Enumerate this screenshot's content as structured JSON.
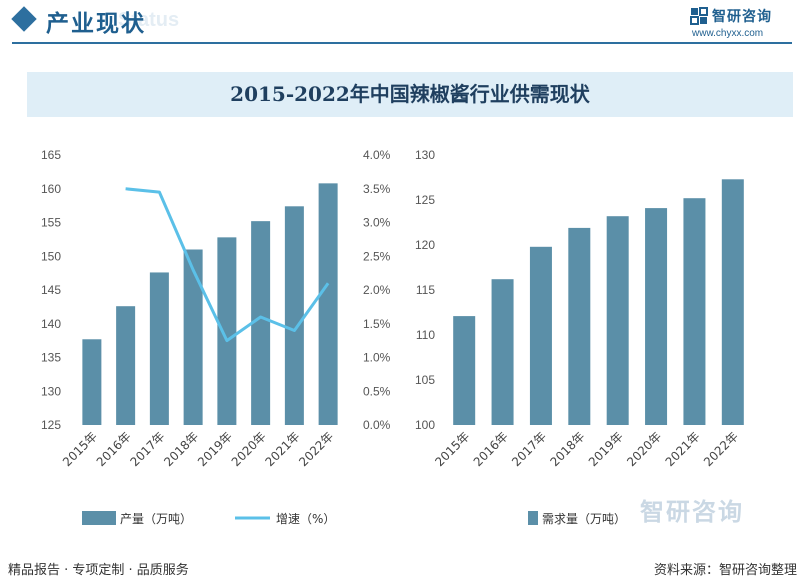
{
  "header": {
    "title": "产业现状",
    "watermark_en": "Status",
    "brand_name": "智研咨询",
    "brand_url": "www.chyxx.com"
  },
  "banner": {
    "title": "2015-2022年中国辣椒酱行业供需现状"
  },
  "footer": {
    "left": "精品报告 · 专项定制 · 品质服务",
    "source": "资料来源：智研咨询整理",
    "brand_watermark": "智研咨询"
  },
  "colors": {
    "bar": "#5b8fa8",
    "line": "#5bc0e8",
    "accent": "#2d6f9f"
  },
  "chart_data": [
    {
      "type": "bar+line",
      "categories": [
        "2015年",
        "2016年",
        "2017年",
        "2018年",
        "2019年",
        "2020年",
        "2021年",
        "2022年"
      ],
      "series": [
        {
          "name": "产量（万吨）",
          "type": "bar",
          "axis": "left",
          "values": [
            137.7,
            142.6,
            147.6,
            151.0,
            152.8,
            155.2,
            157.4,
            160.8
          ]
        },
        {
          "name": "增速（%）",
          "type": "line",
          "axis": "right",
          "values": [
            null,
            3.5,
            3.45,
            2.3,
            1.25,
            1.6,
            1.4,
            2.1
          ]
        }
      ],
      "y_left": {
        "min": 125,
        "max": 165,
        "step": 5,
        "ticks": [
          "125",
          "130",
          "135",
          "140",
          "145",
          "150",
          "155",
          "160",
          "165"
        ]
      },
      "y_right": {
        "min": 0,
        "max": 4.0,
        "step": 0.5,
        "ticks": [
          "0.0%",
          "0.5%",
          "1.0%",
          "1.5%",
          "2.0%",
          "2.5%",
          "3.0%",
          "3.5%",
          "4.0%"
        ]
      },
      "legend": [
        "产量（万吨）",
        "增速（%）"
      ]
    },
    {
      "type": "bar",
      "categories": [
        "2015年",
        "2016年",
        "2017年",
        "2018年",
        "2019年",
        "2020年",
        "2021年",
        "2022年"
      ],
      "series": [
        {
          "name": "需求量（万吨）",
          "values": [
            112.1,
            116.2,
            119.8,
            121.9,
            123.2,
            124.1,
            125.2,
            127.3
          ]
        }
      ],
      "y_left": {
        "min": 100,
        "max": 130,
        "step": 5,
        "ticks": [
          "100",
          "105",
          "110",
          "115",
          "120",
          "125",
          "130"
        ]
      },
      "legend": [
        "需求量（万吨）"
      ]
    }
  ]
}
